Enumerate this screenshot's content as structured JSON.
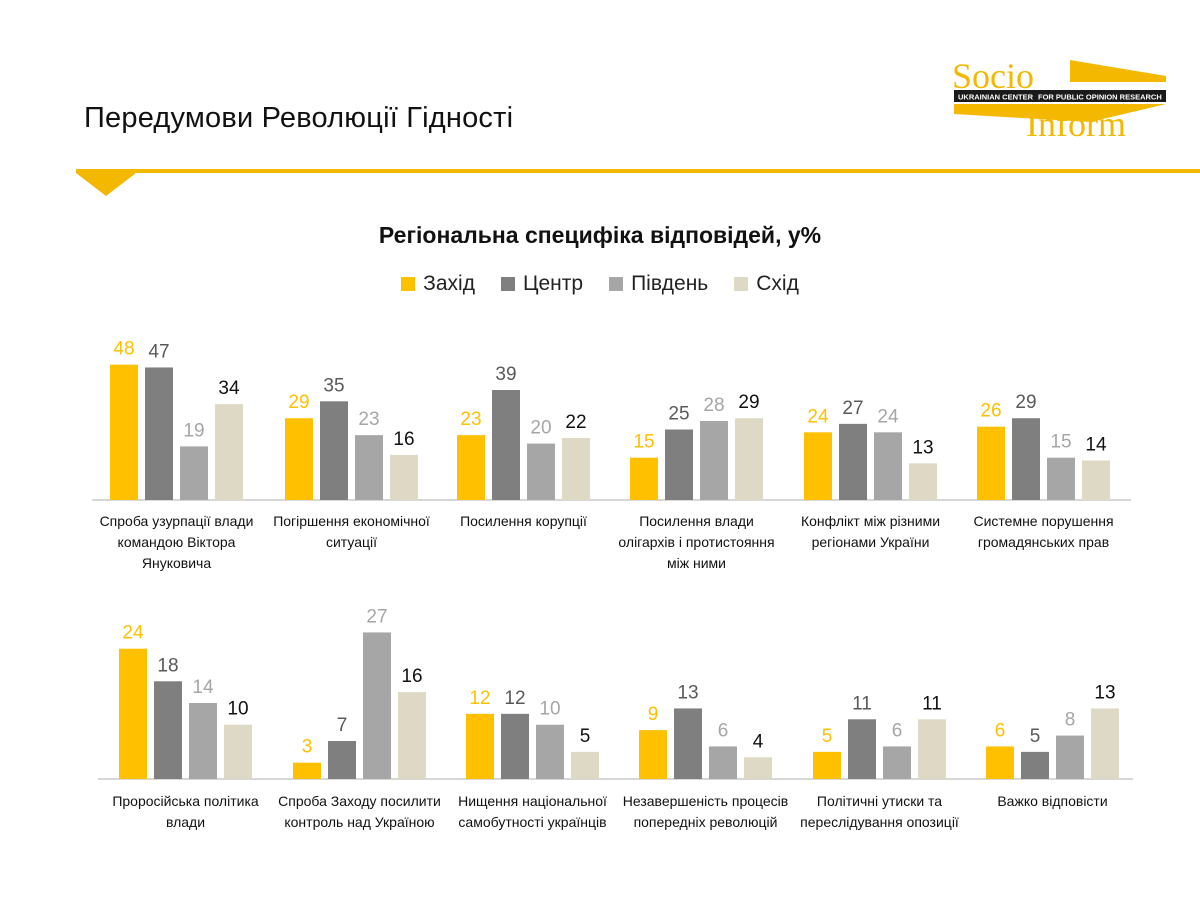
{
  "page": {
    "title": "Передумови Революції Гідності"
  },
  "logo": {
    "word_top": "Socio",
    "word_bottom": "Inform",
    "band_left": "UKRAINIAN CENTER",
    "band_right": "FOR PUBLIC OPINION RESEARCH"
  },
  "colors": {
    "accent": "#F5B800",
    "zahid": "#FFC000",
    "tsentr": "#7F7F7F",
    "pivden": "#A6A6A6",
    "skhid": "#DDD9C4"
  },
  "chart_data": {
    "type": "bar",
    "title": "Регіональна специфіка відповідей, у%",
    "legend_placement": "top-center",
    "grid": false,
    "series": [
      {
        "name": "Захід",
        "color": "#FFC000"
      },
      {
        "name": "Центр",
        "color": "#7F7F7F"
      },
      {
        "name": "Південь",
        "color": "#A6A6A6"
      },
      {
        "name": "Схід",
        "color": "#DDD9C4"
      }
    ],
    "panels": [
      {
        "ylim": [
          0,
          50
        ],
        "categories": [
          {
            "label": "Спроба узурпації влади командою Віктора Януковича",
            "values": [
              48,
              47,
              19,
              34
            ]
          },
          {
            "label": "Погіршення економічної ситуації",
            "values": [
              29,
              35,
              23,
              16
            ]
          },
          {
            "label": "Посилення корупції",
            "values": [
              23,
              39,
              20,
              22
            ]
          },
          {
            "label": "Посилення влади олігархів і протистояння між ними",
            "values": [
              15,
              25,
              28,
              29
            ]
          },
          {
            "label": "Конфлікт між різними регіонами України",
            "values": [
              24,
              27,
              24,
              13
            ]
          },
          {
            "label": "Системне порушення громадянських прав",
            "values": [
              26,
              29,
              15,
              14
            ]
          }
        ]
      },
      {
        "ylim": [
          0,
          28
        ],
        "categories": [
          {
            "label": "Проросійська політика влади",
            "values": [
              24,
              18,
              14,
              10
            ]
          },
          {
            "label": "Спроба Заходу посилити контроль над Україною",
            "values": [
              3,
              7,
              27,
              16
            ]
          },
          {
            "label": "Нищення національної самобутності українців",
            "values": [
              12,
              12,
              10,
              5
            ]
          },
          {
            "label": "Незавершеність процесів попередніх революцій",
            "values": [
              9,
              13,
              6,
              4
            ]
          },
          {
            "label": "Політичні утиски та переслідування опозиції",
            "values": [
              5,
              11,
              6,
              11
            ]
          },
          {
            "label": "Важко відповісти",
            "values": [
              6,
              5,
              8,
              13
            ]
          }
        ]
      }
    ]
  }
}
